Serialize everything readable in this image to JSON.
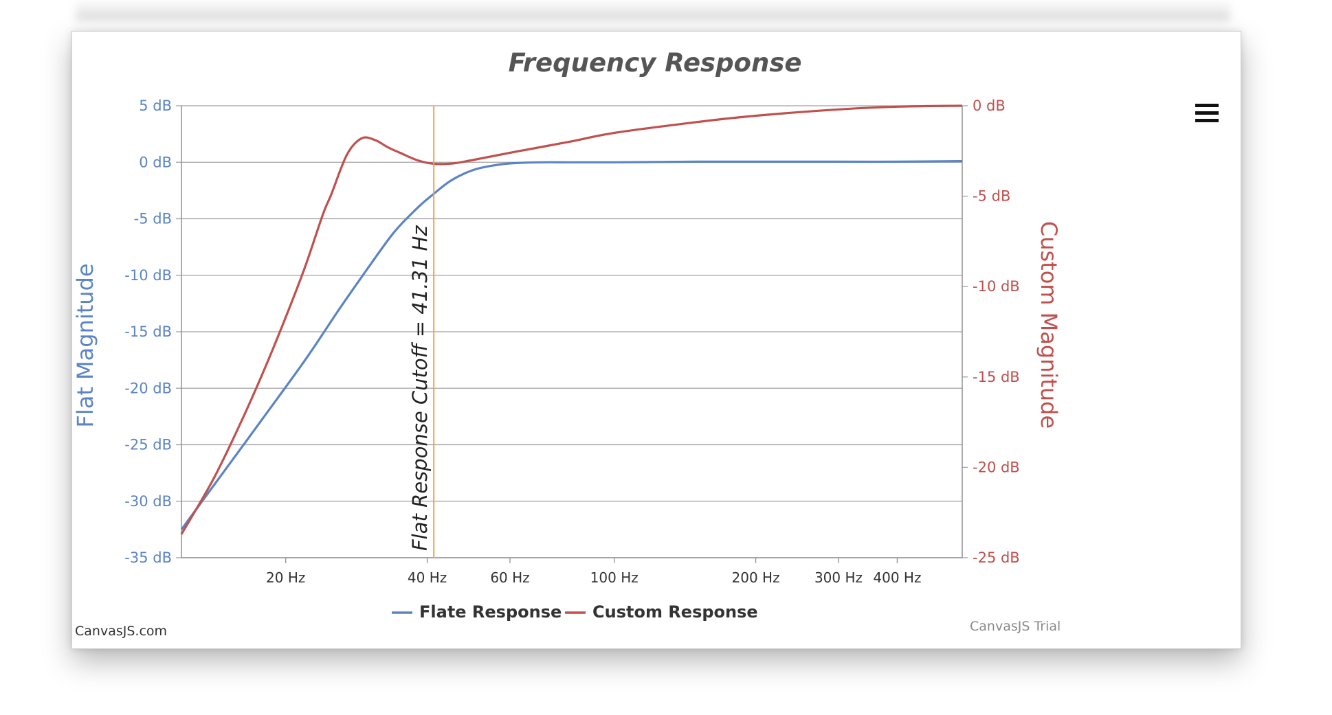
{
  "chart_data": {
    "type": "line",
    "title": "Frequency Response",
    "x_scale": "log",
    "xlim": [
      12,
      550
    ],
    "x_ticks": [
      {
        "value": 20,
        "label": "20 Hz"
      },
      {
        "value": 40,
        "label": "40 Hz"
      },
      {
        "value": 60,
        "label": "60 Hz"
      },
      {
        "value": 100,
        "label": "100 Hz"
      },
      {
        "value": 200,
        "label": "200 Hz"
      },
      {
        "value": 300,
        "label": "300 Hz"
      },
      {
        "value": 400,
        "label": "400 Hz"
      }
    ],
    "y_left": {
      "label": "Flat Magnitude",
      "ylim": [
        -35,
        5
      ],
      "ticks": [
        {
          "value": 5,
          "label": "5 dB"
        },
        {
          "value": 0,
          "label": "0 dB"
        },
        {
          "value": -5,
          "label": "-5 dB"
        },
        {
          "value": -10,
          "label": "-10 dB"
        },
        {
          "value": -15,
          "label": "-15 dB"
        },
        {
          "value": -20,
          "label": "-20 dB"
        },
        {
          "value": -25,
          "label": "-25 dB"
        },
        {
          "value": -30,
          "label": "-30 dB"
        },
        {
          "value": -35,
          "label": "-35 dB"
        }
      ],
      "color": "#5a84c4"
    },
    "y_right": {
      "label": "Custom Magnitude",
      "ylim": [
        -25,
        0
      ],
      "ticks": [
        {
          "value": 0,
          "label": "0 dB"
        },
        {
          "value": -5,
          "label": "-5 dB"
        },
        {
          "value": -10,
          "label": "-10 dB"
        },
        {
          "value": -15,
          "label": "-15 dB"
        },
        {
          "value": -20,
          "label": "-20 dB"
        },
        {
          "value": -25,
          "label": "-25 dB"
        }
      ],
      "color": "#c0504d"
    },
    "series": [
      {
        "name": "Flate Response",
        "axis": "left",
        "color": "#5a84c4",
        "x": [
          12,
          15,
          18,
          22,
          26,
          30,
          34,
          38,
          41,
          45,
          50,
          55,
          60,
          70,
          80,
          100,
          150,
          200,
          300,
          400,
          550
        ],
        "y": [
          -32.5,
          -27.0,
          -22.5,
          -17.5,
          -13.0,
          -9.3,
          -6.2,
          -4.1,
          -2.9,
          -1.6,
          -0.7,
          -0.3,
          -0.1,
          0.0,
          0.0,
          0.0,
          0.05,
          0.05,
          0.05,
          0.05,
          0.1
        ]
      },
      {
        "name": "Custom Response",
        "axis": "right",
        "color": "#c0504d",
        "x": [
          12,
          14,
          16,
          18,
          20,
          22,
          24,
          25,
          27,
          29,
          31,
          33,
          35,
          38,
          41,
          45,
          50,
          60,
          80,
          100,
          150,
          200,
          300,
          400,
          550
        ],
        "y": [
          -23.7,
          -20.7,
          -17.6,
          -14.6,
          -11.7,
          -8.9,
          -6.0,
          -4.9,
          -2.7,
          -1.8,
          -1.9,
          -2.3,
          -2.6,
          -3.0,
          -3.2,
          -3.2,
          -3.0,
          -2.6,
          -2.0,
          -1.5,
          -0.9,
          -0.55,
          -0.2,
          -0.05,
          0.0
        ]
      }
    ],
    "annotations": [
      {
        "type": "strip_line",
        "axis": "x",
        "value": 41.31,
        "label": "Flat Response Cutoff = 41.31 Hz",
        "color": "#f5a04a"
      }
    ],
    "legend": {
      "position": "bottom",
      "items": [
        "Flate Response",
        "Custom Response"
      ]
    },
    "grid": true
  },
  "credits": {
    "left": "CanvasJS.com",
    "right": "CanvasJS Trial"
  },
  "menu_icon": "hamburger-menu-icon"
}
